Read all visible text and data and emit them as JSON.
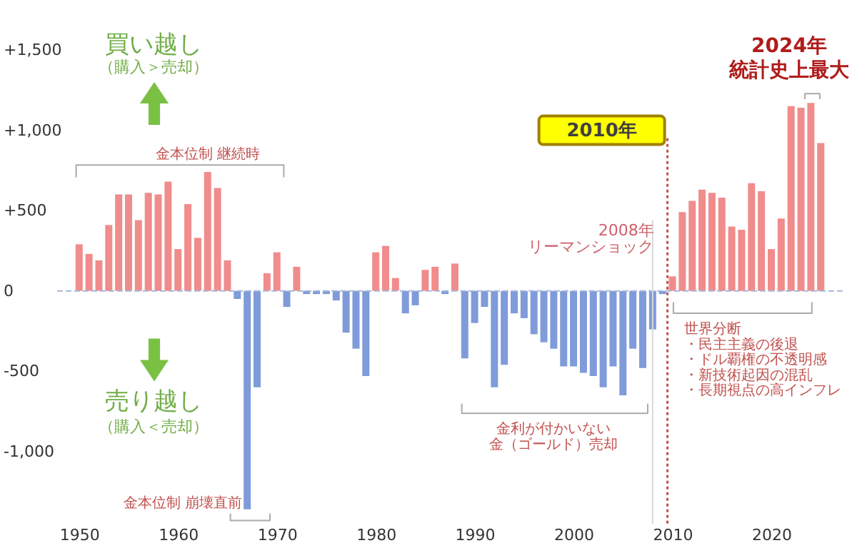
{
  "chart_data": {
    "type": "bar",
    "x": [
      1950,
      1951,
      1952,
      1953,
      1954,
      1955,
      1956,
      1957,
      1958,
      1959,
      1960,
      1961,
      1962,
      1963,
      1964,
      1965,
      1966,
      1967,
      1968,
      1969,
      1970,
      1971,
      1972,
      1973,
      1974,
      1975,
      1976,
      1977,
      1978,
      1979,
      1980,
      1981,
      1982,
      1983,
      1984,
      1985,
      1986,
      1987,
      1988,
      1989,
      1990,
      1991,
      1992,
      1993,
      1994,
      1995,
      1996,
      1997,
      1998,
      1999,
      2000,
      2001,
      2002,
      2003,
      2004,
      2005,
      2006,
      2007,
      2008,
      2009,
      2010,
      2011,
      2012,
      2013,
      2014,
      2015,
      2016,
      2017,
      2018,
      2019,
      2020,
      2021,
      2022,
      2023,
      2024,
      2025
    ],
    "values": [
      290,
      230,
      190,
      410,
      600,
      600,
      440,
      610,
      600,
      680,
      260,
      540,
      330,
      740,
      640,
      190,
      -50,
      -1360,
      -600,
      110,
      240,
      -100,
      150,
      -20,
      -20,
      -20,
      -60,
      -260,
      -360,
      -530,
      240,
      280,
      80,
      -140,
      -90,
      130,
      150,
      -20,
      170,
      -420,
      -200,
      -100,
      -600,
      -460,
      -140,
      -170,
      -270,
      -320,
      -360,
      -470,
      -470,
      -510,
      -530,
      -600,
      -470,
      -650,
      -360,
      -480,
      -240,
      -20,
      90,
      490,
      560,
      630,
      610,
      580,
      400,
      380,
      670,
      620,
      260,
      450,
      1150,
      1140,
      1170,
      920
    ],
    "colors": [
      "#f08c8c",
      "#f08c8c",
      "#f08c8c",
      "#f08c8c",
      "#f08c8c",
      "#f08c8c",
      "#f08c8c",
      "#f08c8c",
      "#f08c8c",
      "#f08c8c",
      "#f08c8c",
      "#f08c8c",
      "#f08c8c",
      "#f08c8c",
      "#f08c8c",
      "#f08c8c",
      "#7f9bd9",
      "#7f9bd9",
      "#7f9bd9",
      "#f08c8c",
      "#f08c8c",
      "#7f9bd9",
      "#f08c8c",
      "#7f9bd9",
      "#7f9bd9",
      "#7f9bd9",
      "#7f9bd9",
      "#7f9bd9",
      "#7f9bd9",
      "#7f9bd9",
      "#f08c8c",
      "#f08c8c",
      "#f08c8c",
      "#7f9bd9",
      "#7f9bd9",
      "#f08c8c",
      "#f08c8c",
      "#7f9bd9",
      "#f08c8c",
      "#7f9bd9",
      "#7f9bd9",
      "#7f9bd9",
      "#7f9bd9",
      "#7f9bd9",
      "#7f9bd9",
      "#7f9bd9",
      "#7f9bd9",
      "#7f9bd9",
      "#7f9bd9",
      "#7f9bd9",
      "#7f9bd9",
      "#7f9bd9",
      "#7f9bd9",
      "#7f9bd9",
      "#7f9bd9",
      "#7f9bd9",
      "#7f9bd9",
      "#7f9bd9",
      "#7f9bd9",
      "#7f9bd9",
      "#f08c8c",
      "#f08c8c",
      "#f08c8c",
      "#f08c8c",
      "#f08c8c",
      "#f08c8c",
      "#f08c8c",
      "#f08c8c",
      "#f08c8c",
      "#f08c8c",
      "#f08c8c",
      "#f08c8c",
      "#f08c8c",
      "#f08c8c",
      "#f08c8c",
      "#f08c8c"
    ],
    "xlim": [
      1948.5,
      2026.5
    ],
    "xticks": [
      1950,
      1960,
      1970,
      1980,
      1990,
      2000,
      2010,
      2020
    ],
    "ylim": [
      -1450,
      1500
    ],
    "yticks": [
      {
        "value": 1500,
        "label": "+1,500"
      },
      {
        "value": 1000,
        "label": "+1,000"
      },
      {
        "value": 500,
        "label": "+500"
      },
      0,
      {
        "value": -500,
        "label": "-500"
      },
      {
        "value": -1000,
        "label": "-1,000"
      }
    ],
    "ref_lines": [
      {
        "axis": "x",
        "value": 2009.5,
        "label": "2010年",
        "color": "#c0504d",
        "line_style": "dotted"
      },
      {
        "axis": "x",
        "value": 2008,
        "label": "2008年",
        "color": "#d9d9d9",
        "line_style": "solid"
      },
      {
        "axis": "y",
        "value": 0,
        "color": "#a9b8d6",
        "line_style": "dashed"
      }
    ],
    "annotations": [
      "買い越し",
      "（購入＞売却）",
      "売り越し",
      "（購入＜売却）",
      "金本位制 継続時",
      "金本位制 崩壊直前",
      "金利が付かいない",
      "金（ゴールド）売却",
      "世界分断",
      "・民主主義の後退",
      "・ドル覇権の不透明感",
      "・新技術起因の混乱",
      "・長期視点の高インフレ",
      "リーマンショック",
      "2024年",
      "統計史上最大"
    ]
  }
}
